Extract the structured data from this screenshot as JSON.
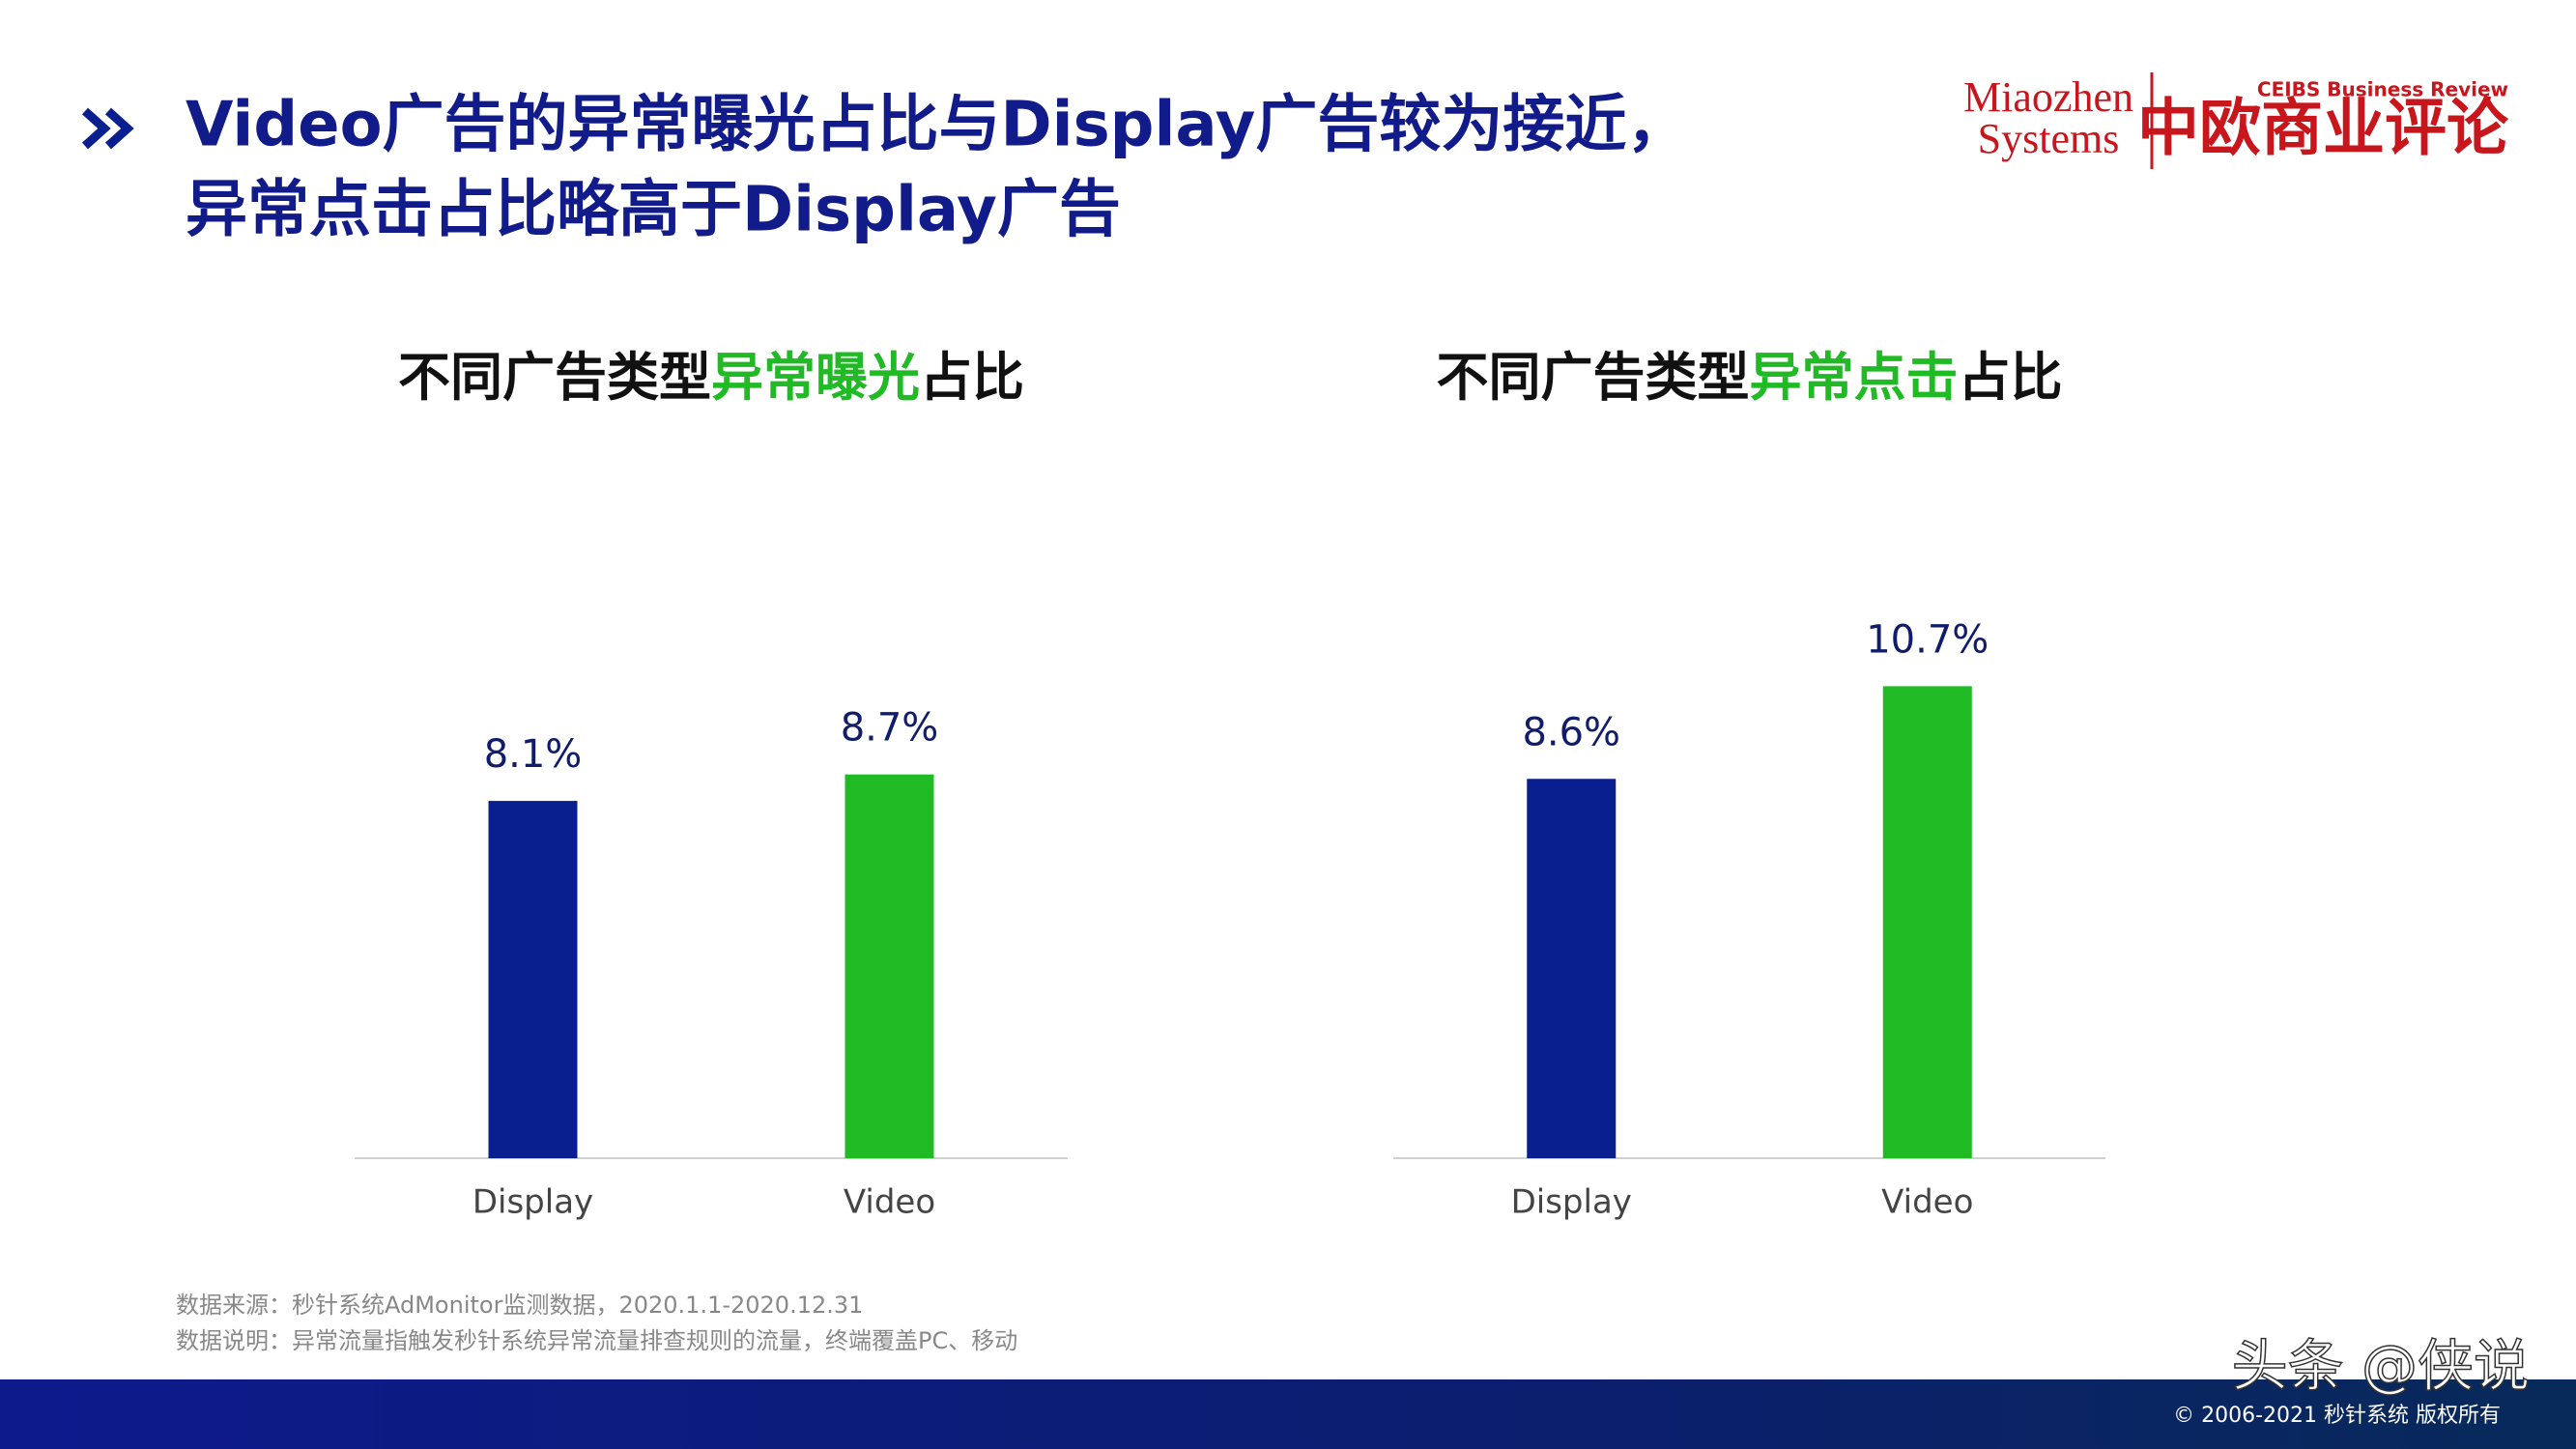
{
  "header": {
    "title_lines": [
      "Video广告的异常曝光占比与Display广告较为接近，",
      "异常点击占比略高于Display广告"
    ]
  },
  "logo": {
    "brand_top": "Miaozhen",
    "brand_bottom": "Systems",
    "review_en": "CEIBS Business Review",
    "review_cn": "中欧商业评论"
  },
  "chart_data": [
    {
      "type": "bar",
      "title": [
        "不同广告类型",
        "异常曝光",
        "占比"
      ],
      "title_highlight_color": "#1fba24",
      "categories": [
        "Display",
        "Video"
      ],
      "values": [
        8.1,
        8.7
      ],
      "value_labels": [
        "8.1%",
        "8.7%"
      ],
      "colors": [
        "#0a1f8f",
        "#1fba24"
      ],
      "ylim": [
        0,
        12
      ]
    },
    {
      "type": "bar",
      "title": [
        "不同广告类型",
        "异常点击",
        "占比"
      ],
      "title_highlight_color": "#1fba24",
      "categories": [
        "Display",
        "Video"
      ],
      "values": [
        8.6,
        10.7
      ],
      "value_labels": [
        "8.6%",
        "10.7%"
      ],
      "colors": [
        "#0a1f8f",
        "#1fba24"
      ],
      "ylim": [
        0,
        12
      ]
    }
  ],
  "footnotes": [
    "数据来源：秒针系统AdMonitor监测数据，2020.1.1-2020.12.31",
    "数据说明：异常流量指触发秒针系统异常流量排查规则的流量，终端覆盖PC、移动"
  ],
  "watermark": "头条 @侠说",
  "copyright": "© 2006-2021 秒针系统 版权所有"
}
